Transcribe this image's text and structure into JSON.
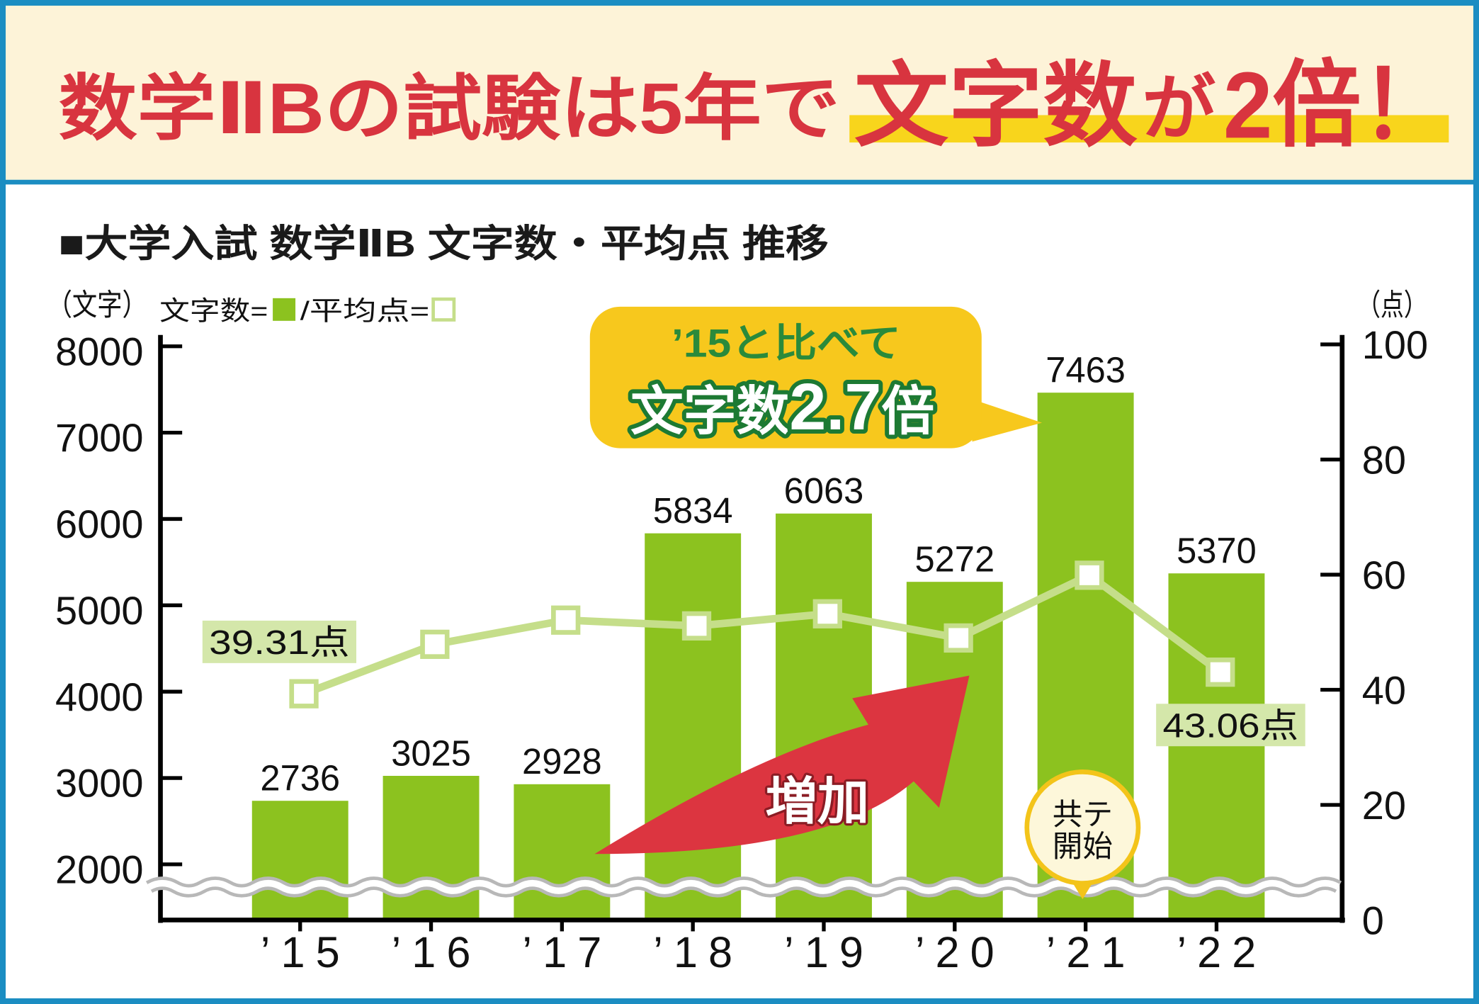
{
  "banner": {
    "title_part1": "数学ⅡBの試験は5年で",
    "title_part2": "文字数",
    "title_part3": "が",
    "title_part4": "2倍！"
  },
  "heading": "■大学入試 数学ⅡB 文字数・平均点 推移",
  "callout": {
    "line1": "’15と比べて",
    "line2a": "文字数",
    "line2b": "2.7",
    "line2c": "倍"
  },
  "arrow_label": "増加",
  "badge": {
    "line1": "共テ",
    "line2": "開始"
  },
  "colors": {
    "title": "#d8343f",
    "highlight": "#f8d51c",
    "border": "#1b8dc2",
    "banner_bg": "#fdf3d8",
    "bar": "#8cc21f",
    "line": "#c5de8a",
    "point_label_bg": "#d4e7aa",
    "callout_bg": "#f7c81d",
    "callout_text": "#2a8a3b",
    "arrow": "#dc3540",
    "badge_bg": "#fdf7da",
    "badge_border": "#f3c41a"
  },
  "chart_data": {
    "type": "bar",
    "categories": [
      "’15",
      "’16",
      "’17",
      "’18",
      "’19",
      "’20",
      "’21",
      "’22"
    ],
    "series": [
      {
        "name": "文字数",
        "type": "bar",
        "axis": "left",
        "values": [
          2736,
          3025,
          2928,
          5834,
          6063,
          5272,
          7463,
          5370
        ]
      },
      {
        "name": "平均点",
        "type": "line",
        "axis": "right",
        "values": [
          39.31,
          47.9,
          52.1,
          51.1,
          53.2,
          49.0,
          59.9,
          43.06
        ]
      }
    ],
    "line_labels": [
      "39.31点",
      null,
      null,
      null,
      null,
      null,
      null,
      "43.06点"
    ],
    "y_left": {
      "label": "（文字）",
      "ticks": [
        8000,
        7000,
        6000,
        5000,
        4000,
        3000,
        2000
      ],
      "range": [
        2000,
        8000
      ],
      "axis_break": true
    },
    "y_right": {
      "label": "（点）",
      "ticks": [
        100,
        80,
        60,
        40,
        20,
        0
      ],
      "range": [
        0,
        100
      ]
    },
    "legend": {
      "equals": "=",
      "separator": "/",
      "placement": "top-left"
    },
    "grid": false
  }
}
